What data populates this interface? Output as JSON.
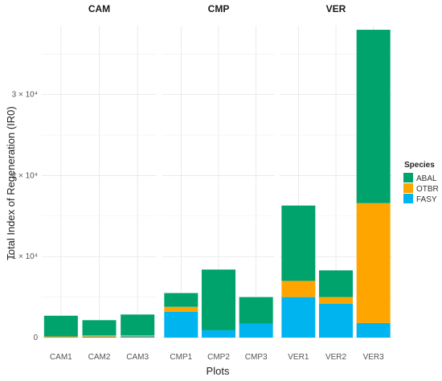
{
  "chart_data": {
    "type": "bar",
    "stacked": true,
    "facets": [
      "CAM",
      "CMP",
      "VER"
    ],
    "facet_categories": {
      "CAM": [
        "CAM1",
        "CAM2",
        "CAM3"
      ],
      "CMP": [
        "CMP1",
        "CMP2",
        "CMP3"
      ],
      "VER": [
        "VER1",
        "VER2",
        "VER3"
      ]
    },
    "categories": [
      "CAM1",
      "CAM2",
      "CAM3",
      "CMP1",
      "CMP2",
      "CMP3",
      "VER1",
      "VER2",
      "VER3"
    ],
    "series": [
      {
        "name": "FASY",
        "color": "#00B4EF",
        "values": [
          50,
          120,
          150,
          3200,
          900,
          1700,
          5000,
          4200,
          1800
        ]
      },
      {
        "name": "OTBR",
        "color": "#FFA500",
        "values": [
          100,
          150,
          130,
          600,
          0,
          0,
          2000,
          800,
          14800
        ]
      },
      {
        "name": "ABAL",
        "color": "#00A36C",
        "values": [
          2550,
          1880,
          2570,
          1700,
          7500,
          3300,
          9300,
          3300,
          21400
        ]
      }
    ],
    "xlabel": "Plots",
    "ylabel": "Total Index of Regeneration (IR0)",
    "ylim": [
      0,
      38500
    ],
    "yticks": [
      {
        "value": 0,
        "label": "0"
      },
      {
        "value": 10000,
        "label": "1 × 10⁴"
      },
      {
        "value": 20000,
        "label": "2 × 10⁴"
      },
      {
        "value": 30000,
        "label": "3 × 10⁴"
      }
    ],
    "legend": {
      "title": "Species",
      "placement": "right",
      "entries": [
        {
          "name": "ABAL",
          "color": "#00A36C"
        },
        {
          "name": "OTBR",
          "color": "#FFA500"
        },
        {
          "name": "FASY",
          "color": "#00B4EF"
        }
      ]
    },
    "grid": true
  }
}
